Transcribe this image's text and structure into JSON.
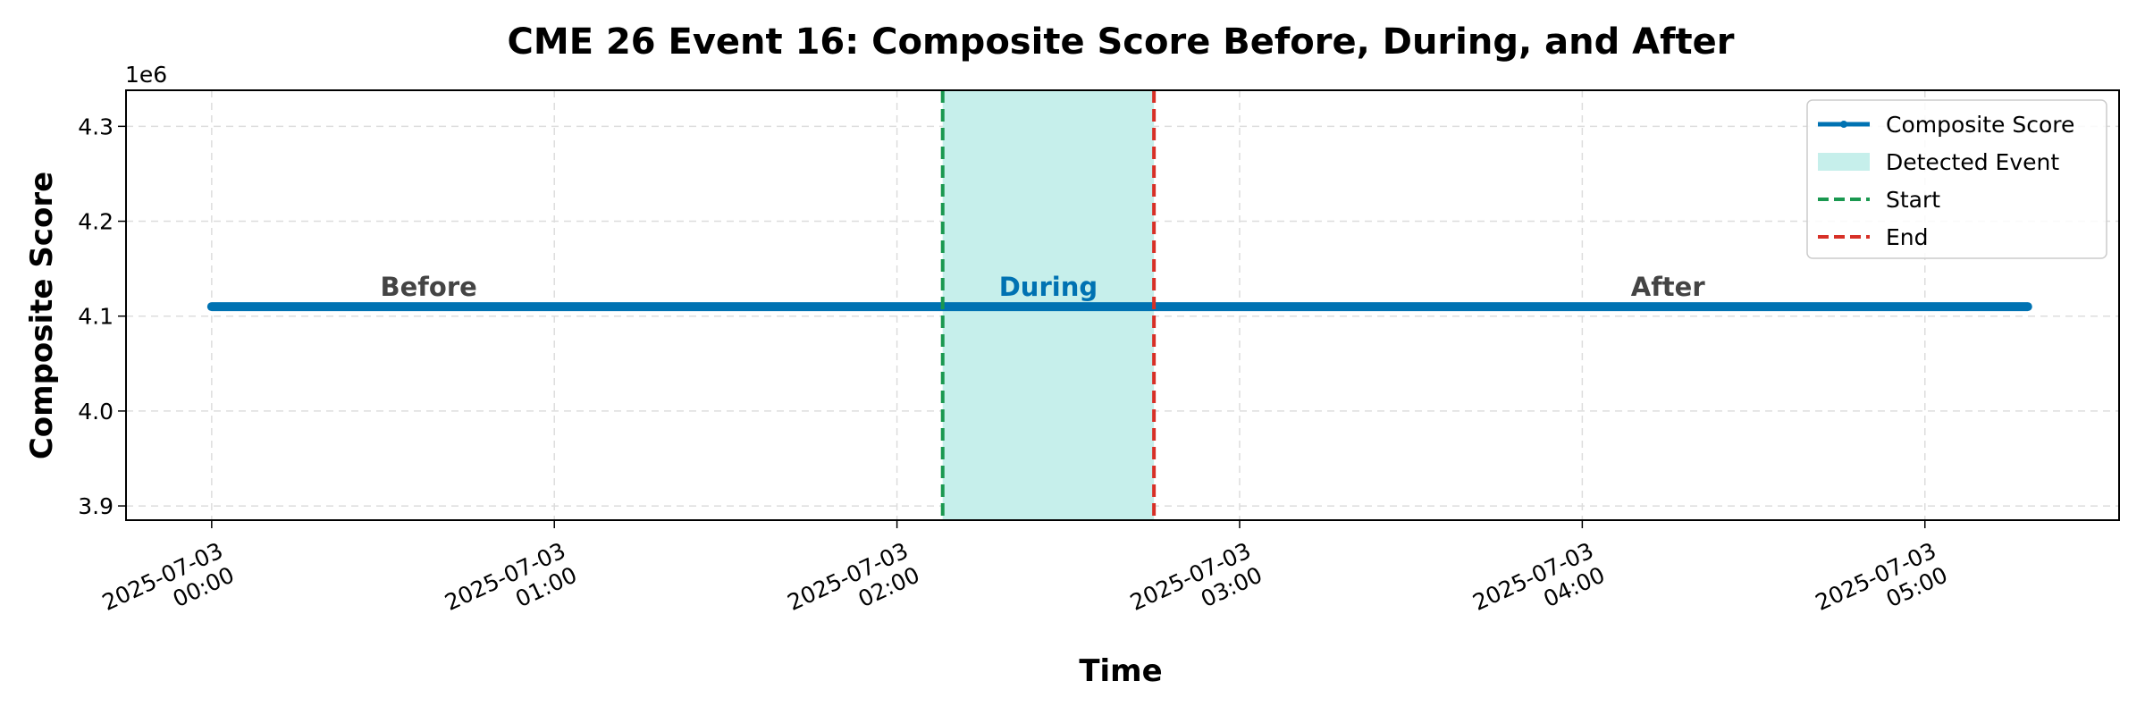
{
  "chart_data": {
    "type": "line",
    "title": "CME 26 Event 16: Composite Score Before, During, and After",
    "xlabel": "Time",
    "ylabel": "Composite Score",
    "y_offset_label": "1e6",
    "y_scale_factor": 1000000,
    "xlim": [
      "2025-07-02T23:45:00",
      "2025-07-03T05:34:00"
    ],
    "ylim": [
      3.885,
      4.338
    ],
    "grid": true,
    "legend_placement": "top-right",
    "x_ticks": [
      {
        "t": "2025-07-03T00:00:00",
        "line1": "2025-07-03",
        "line2": "00:00"
      },
      {
        "t": "2025-07-03T01:00:00",
        "line1": "2025-07-03",
        "line2": "01:00"
      },
      {
        "t": "2025-07-03T02:00:00",
        "line1": "2025-07-03",
        "line2": "02:00"
      },
      {
        "t": "2025-07-03T03:00:00",
        "line1": "2025-07-03",
        "line2": "03:00"
      },
      {
        "t": "2025-07-03T04:00:00",
        "line1": "2025-07-03",
        "line2": "04:00"
      },
      {
        "t": "2025-07-03T05:00:00",
        "line1": "2025-07-03",
        "line2": "05:00"
      }
    ],
    "y_ticks": [
      "3.9",
      "4.0",
      "4.1",
      "4.2",
      "4.3"
    ],
    "series": [
      {
        "name": "Composite Score",
        "color": "#0072B2",
        "points": [
          {
            "x": "2025-07-03T00:00:00",
            "y": 4110000
          },
          {
            "x": "2025-07-03T02:08:00",
            "y": 4110000
          },
          {
            "x": "2025-07-03T02:45:00",
            "y": 4110000
          },
          {
            "x": "2025-07-03T05:18:00",
            "y": 4110000
          }
        ]
      }
    ],
    "event": {
      "legend_label": "Detected Event",
      "start": "2025-07-03T02:08:00",
      "end": "2025-07-03T02:45:00",
      "fill_color": "#C6EFEB",
      "start_label": "Start",
      "start_color": "#1A9850",
      "end_label": "End",
      "end_color": "#D73027"
    },
    "annotations": [
      {
        "text": "Before",
        "x": "2025-07-03T00:38:00",
        "color": "#444444"
      },
      {
        "text": "During",
        "x": "2025-07-03T02:26:30",
        "color": "#0072B2"
      },
      {
        "text": "After",
        "x": "2025-07-03T04:15:00",
        "color": "#444444"
      }
    ]
  }
}
